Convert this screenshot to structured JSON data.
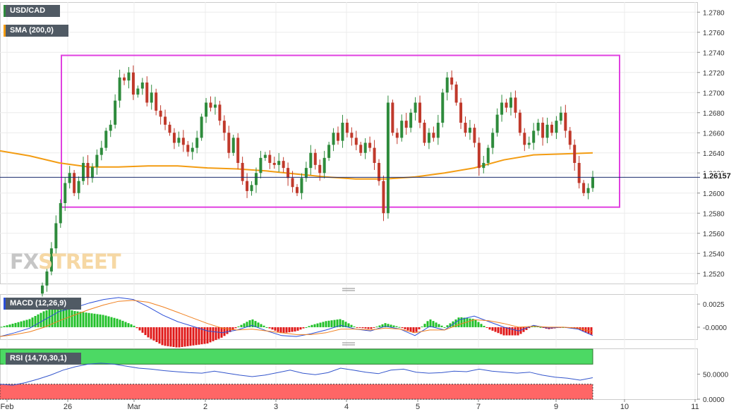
{
  "symbol": "USD/CAD",
  "overlay_label": "SMA (200,0)",
  "macd_label": "MACD (12,26,9)",
  "rsi_label": "RSI (14,70,30,1)",
  "watermark": {
    "part1": "FX",
    "part2": "STREET"
  },
  "last_price_label": "1.26157",
  "colors": {
    "up": "#2e8b3c",
    "down": "#c0392b",
    "sma": "#f39c12",
    "box": "#e040e0",
    "macd_line": "#2b4fd8",
    "signal_line": "#f08020",
    "hist_pos": "#22c02a",
    "hist_neg": "#e01818",
    "rsi_line": "#3355cc",
    "rsi_overbought": "#4cd964",
    "rsi_oversold": "#ff6666",
    "price_line": "#1a2a6c"
  },
  "chart_data": {
    "type": "candlestick",
    "price_axis": {
      "min": 1.251,
      "max": 1.279,
      "ticks": [
        "1.2780",
        "1.2760",
        "1.2740",
        "1.2720",
        "1.2700",
        "1.2680",
        "1.2660",
        "1.2640",
        "1.2620",
        "1.2600",
        "1.2580",
        "1.2560",
        "1.2540",
        "1.2520"
      ]
    },
    "time_axis": [
      "Feb",
      "26",
      "Mar",
      "2",
      "3",
      "4",
      "5",
      "7",
      "9",
      "10",
      "11"
    ],
    "last_price": 1.26157,
    "range_box": {
      "high": 1.2737,
      "low": 1.2586
    },
    "sma_200": [
      1.2642,
      1.2637,
      1.263,
      1.2626,
      1.2626,
      1.2627,
      1.2627,
      1.2625,
      1.2624,
      1.2622,
      1.2619,
      1.2616,
      1.2614,
      1.2614,
      1.2616,
      1.262,
      1.2625,
      1.2633,
      1.2638,
      1.2639,
      1.264
    ],
    "candle_closes": [
      1.2508,
      1.2522,
      1.2545,
      1.257,
      1.259,
      1.261,
      1.262,
      1.26,
      1.2612,
      1.263,
      1.2615,
      1.2626,
      1.2638,
      1.2645,
      1.2662,
      1.2668,
      1.2692,
      1.2715,
      1.2712,
      1.272,
      1.2698,
      1.2704,
      1.271,
      1.269,
      1.27,
      1.2682,
      1.2676,
      1.2668,
      1.266,
      1.265,
      1.2655,
      1.2648,
      1.2641,
      1.2645,
      1.2655,
      1.2676,
      1.269,
      1.2685,
      1.2688,
      1.2672,
      1.266,
      1.264,
      1.2655,
      1.263,
      1.2612,
      1.2602,
      1.2608,
      1.262,
      1.2635,
      1.2638,
      1.263,
      1.2628,
      1.2632,
      1.2625,
      1.2615,
      1.2606,
      1.26,
      1.2615,
      1.2625,
      1.264,
      1.2628,
      1.262,
      1.2635,
      1.2648,
      1.266,
      1.2652,
      1.267,
      1.266,
      1.2655,
      1.2648,
      1.264,
      1.265,
      1.2645,
      1.263,
      1.2612,
      1.258,
      1.269,
      1.266,
      1.2655,
      1.2672,
      1.2665,
      1.268,
      1.269,
      1.267,
      1.265,
      1.266,
      1.2655,
      1.267,
      1.27,
      1.2715,
      1.2708,
      1.269,
      1.267,
      1.266,
      1.2665,
      1.265,
      1.2625,
      1.263,
      1.2645,
      1.266,
      1.2678,
      1.269,
      1.2685,
      1.2695,
      1.268,
      1.266,
      1.2648,
      1.265,
      1.2662,
      1.267,
      1.2655,
      1.2668,
      1.266,
      1.2672,
      1.268,
      1.2662,
      1.2648,
      1.263,
      1.261,
      1.26,
      1.2605,
      1.2616
    ],
    "macd": {
      "axis_ticks": [
        "0.0025",
        "-0.0000"
      ],
      "min": -0.0013,
      "max": 0.0035,
      "macd_line": [
        -0.001,
        -0.0006,
        -0.0001,
        0.0008,
        0.0017,
        0.0021,
        0.0026,
        0.003,
        0.0032,
        0.003,
        0.0022,
        0.0013,
        0.0006,
        0.0001,
        -0.0004,
        -0.0006,
        -0.0003,
        0.0002,
        -0.0004,
        -0.0009,
        -0.001,
        -0.0007,
        -0.0003,
        0.0002,
        -0.0002,
        -0.0004,
        0.0001,
        -0.0002,
        -0.0009,
        0.0001,
        -0.0003,
        0.0008,
        0.0012,
        0.0006,
        0.0,
        -0.0004,
        0.0002,
        -0.0001,
        0.0,
        -0.0002,
        -0.0009
      ],
      "signal_line": [
        -0.001,
        -0.0008,
        -0.0005,
        0.0,
        0.0007,
        0.0013,
        0.0019,
        0.0024,
        0.0028,
        0.0029,
        0.0027,
        0.0022,
        0.0016,
        0.001,
        0.0004,
        -0.0001,
        -0.0003,
        -0.0002,
        -0.0004,
        -0.0006,
        -0.0008,
        -0.0008,
        -0.0006,
        -0.0002,
        -0.0002,
        -0.0003,
        -0.0001,
        -0.0002,
        -0.0006,
        -0.0003,
        -0.0003,
        0.0003,
        0.0008,
        0.0007,
        0.0004,
        0.0,
        0.0001,
        0.0,
        0.0,
        -0.0001,
        -0.0005
      ]
    },
    "rsi": {
      "axis_ticks": [
        "50.0000",
        "0.0000"
      ],
      "min": 0,
      "max": 100,
      "overbought": 70,
      "oversold": 30,
      "values": [
        30,
        28,
        33,
        40,
        48,
        58,
        65,
        70,
        72,
        70,
        66,
        62,
        60,
        57,
        55,
        53,
        52,
        56,
        52,
        48,
        45,
        48,
        53,
        58,
        52,
        49,
        53,
        62,
        58,
        54,
        51,
        58,
        60,
        54,
        52,
        53,
        56,
        55,
        60,
        56,
        54,
        52,
        54,
        48,
        44,
        42,
        38,
        43
      ]
    }
  }
}
